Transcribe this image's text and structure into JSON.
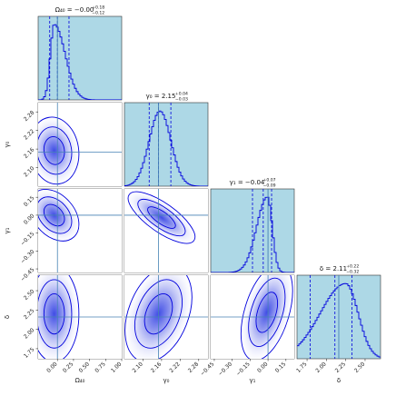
{
  "chart_data": {
    "type": "corner",
    "parameters": [
      {
        "key": "omega",
        "label": "Ω₄₀",
        "range": [
          -0.3,
          1.0
        ],
        "ticks": [
          "0.00",
          "0.25",
          "0.50",
          "0.75",
          "1.00"
        ],
        "tick_values": [
          0.0,
          0.25,
          0.5,
          0.75,
          1.0
        ],
        "title": {
          "main": "Ω₄₀ = −0.00",
          "upper": "+0.18",
          "lower": "−0.12"
        },
        "median": -0.0,
        "q_low": -0.12,
        "q_high": 0.18,
        "truth": 0.0
      },
      {
        "key": "gamma0",
        "label": "γ₀",
        "range": [
          2.04,
          2.31
        ],
        "ticks": [
          "2.10",
          "2.16",
          "2.22",
          "2.28"
        ],
        "tick_values": [
          2.1,
          2.16,
          2.22,
          2.28
        ],
        "title": {
          "main": "γ₀ = 2.15",
          "upper": "+0.04",
          "lower": "−0.03"
        },
        "median": 2.15,
        "q_low": 2.12,
        "q_high": 2.19,
        "truth": 2.15
      },
      {
        "key": "gamma1",
        "label": "γ₁",
        "range": [
          -0.48,
          0.22
        ],
        "ticks": [
          "−0.45",
          "−0.30",
          "−0.15",
          "0.00",
          "0.15"
        ],
        "tick_values": [
          -0.45,
          -0.3,
          -0.15,
          0.0,
          0.15
        ],
        "title": {
          "main": "γ₁ = −0.04",
          "upper": "+0.07",
          "lower": "−0.09"
        },
        "median": -0.04,
        "q_low": -0.13,
        "q_high": 0.03,
        "truth": 0.0
      },
      {
        "key": "delta",
        "label": "δ",
        "range": [
          1.62,
          2.7
        ],
        "ticks": [
          "1.75",
          "2.00",
          "2.25",
          "2.50"
        ],
        "tick_values": [
          1.75,
          2.0,
          2.25,
          2.5
        ],
        "title": {
          "main": "δ = 2.11",
          "upper": "+0.22",
          "lower": "−0.32"
        },
        "median": 2.11,
        "q_low": 1.79,
        "q_high": 2.33,
        "truth": 2.16
      }
    ],
    "panel_background": "#add8e6",
    "line_color": "#0000dd",
    "truth_color": "#4682b4",
    "density_color": "#1e2ee0",
    "contour_levels": 3,
    "grid": false
  }
}
